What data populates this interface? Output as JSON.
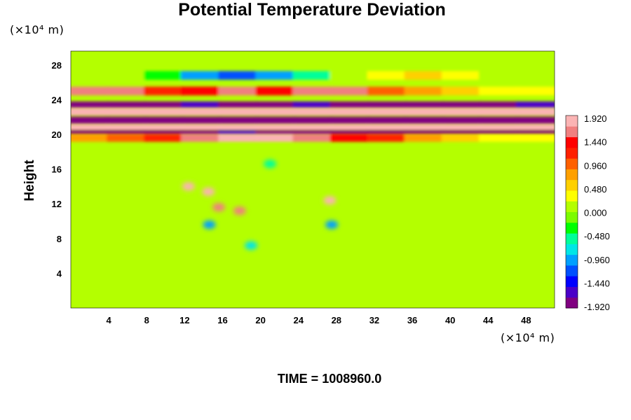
{
  "chart_data": {
    "type": "heatmap",
    "title": "Potential Temperature Deviation",
    "ylabel": "Height",
    "x_unit": "(×10⁴ m)",
    "y_unit": "(×10⁴ m)",
    "footer": "TIME = 1008960.0",
    "x_ticks": [
      "4",
      "8",
      "12",
      "16",
      "20",
      "24",
      "28",
      "32",
      "36",
      "40",
      "44",
      "48"
    ],
    "y_ticks": [
      "4",
      "8",
      "12",
      "16",
      "20",
      "24",
      "28"
    ],
    "xlim": [
      0,
      51
    ],
    "ylim": [
      0,
      29.6
    ],
    "colorbar": {
      "labels": [
        "1.920",
        "1.440",
        "0.960",
        "0.480",
        "0.000",
        "-0.480",
        "-0.960",
        "-1.440",
        "-1.920"
      ],
      "range": [
        -1.92,
        1.92
      ],
      "colors": [
        "#800080",
        "#4b00c8",
        "#0000ff",
        "#0050ff",
        "#00a0ff",
        "#00e6e6",
        "#00ff9a",
        "#00ff00",
        "#7cfc00",
        "#b4ff00",
        "#ffff00",
        "#ffd000",
        "#ffa000",
        "#ff6000",
        "#ff2000",
        "#ff0000",
        "#f08080",
        "#fbb4b4"
      ]
    },
    "bands": [
      {
        "y": 25.0,
        "values": [
          1.5,
          1.6,
          1.2,
          1.4,
          1.7,
          1.3,
          1.5,
          1.6,
          1.0,
          0.8,
          0.6,
          0.4,
          0.3
        ]
      },
      {
        "y": 23.4,
        "values": [
          -1.9,
          -1.8,
          -1.9,
          -1.7,
          -1.9,
          -1.9,
          -1.6,
          -1.8,
          -1.9,
          -1.9,
          -1.8,
          -1.9,
          -1.7
        ]
      },
      {
        "y": 22.6,
        "values": [
          1.9,
          1.9,
          1.9,
          1.9,
          1.8,
          1.9,
          1.9,
          1.9,
          1.9,
          1.8,
          1.9,
          1.9,
          1.9
        ]
      },
      {
        "y": 21.6,
        "values": [
          -1.9,
          -1.9,
          -1.9,
          -1.9,
          -1.9,
          -1.9,
          -1.9,
          -1.9,
          -1.9,
          -1.9,
          -1.9,
          -1.9,
          -1.9
        ]
      },
      {
        "y": 20.8,
        "values": [
          1.9,
          1.9,
          1.9,
          1.8,
          1.9,
          1.9,
          1.9,
          1.9,
          1.9,
          1.9,
          1.9,
          1.9,
          1.9
        ]
      },
      {
        "y": 20.2,
        "values": [
          -1.9,
          -1.8,
          -1.9,
          -1.9,
          -1.7,
          -1.9,
          -1.9,
          -1.8,
          -1.9,
          -1.9,
          -1.9,
          -1.9,
          -1.9
        ]
      },
      {
        "y": 19.6,
        "values": [
          0.8,
          1.0,
          1.2,
          1.6,
          1.9,
          1.9,
          1.7,
          1.4,
          1.1,
          0.8,
          0.6,
          0.4,
          0.3
        ]
      },
      {
        "y": 26.8,
        "values": [
          0.2,
          0.1,
          -0.3,
          -0.9,
          -1.2,
          -1.0,
          -0.6,
          0.1,
          0.3,
          0.6,
          0.4,
          0.2,
          0.1
        ]
      }
    ],
    "anomalies": [
      {
        "x": 12.4,
        "y": 14.0,
        "value": 1.9
      },
      {
        "x": 14.5,
        "y": 13.4,
        "value": 1.9
      },
      {
        "x": 15.6,
        "y": 11.6,
        "value": 1.7
      },
      {
        "x": 17.8,
        "y": 11.2,
        "value": 1.6
      },
      {
        "x": 14.6,
        "y": 9.6,
        "value": -0.9
      },
      {
        "x": 27.3,
        "y": 12.4,
        "value": 1.8
      },
      {
        "x": 27.5,
        "y": 9.6,
        "value": -1.0
      },
      {
        "x": 21.0,
        "y": 16.6,
        "value": -0.6
      },
      {
        "x": 19.0,
        "y": 7.2,
        "value": -0.7
      }
    ],
    "background_value": 0.0
  }
}
